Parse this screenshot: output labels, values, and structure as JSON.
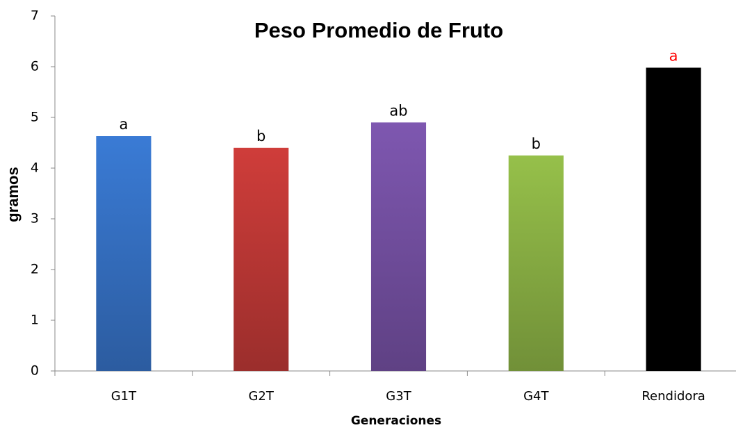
{
  "chart_data": {
    "type": "bar",
    "title": "Peso Promedio de Fruto",
    "x_label": "Generaciones",
    "y_label": "gramos",
    "categories": [
      "G1T",
      "G2T",
      "G3T",
      "G4T",
      "Rendidora"
    ],
    "values": [
      4.63,
      4.4,
      4.9,
      4.25,
      5.98
    ],
    "colors": [
      "#3a7bd5",
      "#cf3d3a",
      "#7e57b0",
      "#96c04a",
      "#000000"
    ],
    "annotations": [
      "a",
      "b",
      "ab",
      "b",
      "a"
    ],
    "annotation_colors": [
      "#000000",
      "#000000",
      "#000000",
      "#000000",
      "#ff0000"
    ],
    "ylim": [
      0,
      7
    ],
    "yticks": [
      0,
      1,
      2,
      3,
      4,
      5,
      6,
      7
    ],
    "grid": false
  }
}
